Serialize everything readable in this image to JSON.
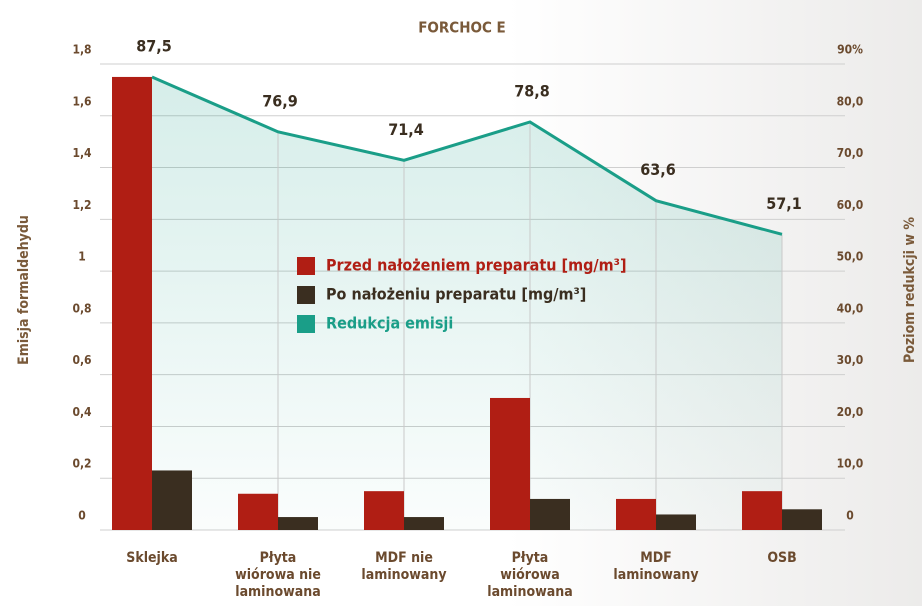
{
  "chart_data": {
    "type": "bar_line",
    "title": "FORCHOC E",
    "y_label": "Emisja formaldehydu",
    "y2_label": "Poziom redukcji w %",
    "categories": [
      "Sklejka",
      "Płyta\nwiórowa nie\nlaminowana",
      "MDF nie\nlaminowany",
      "Płyta\nwiórowa\nlaminowana",
      "MDF\nlaminowany",
      "OSB"
    ],
    "series": [
      {
        "name": "Przed nałożeniem preparatu [mg/m³]",
        "color": "#b01e14",
        "type": "bar",
        "values": [
          1.75,
          0.14,
          0.15,
          0.51,
          0.12,
          0.15
        ]
      },
      {
        "name": "Po nałożeniu preparatu [mg/m³]",
        "color": "#3a2e20",
        "type": "bar",
        "values": [
          0.23,
          0.05,
          0.05,
          0.12,
          0.06,
          0.08
        ]
      },
      {
        "name": "Redukcja emisji",
        "color": "#1a9e88",
        "type": "line",
        "axis": "y2",
        "values": [
          87.5,
          76.9,
          71.4,
          78.8,
          63.6,
          57.1
        ],
        "value_labels": [
          "87,5",
          "76,9",
          "71,4",
          "78,8",
          "63,6",
          "57,1"
        ]
      }
    ],
    "ylim": [
      0,
      1.8
    ],
    "yticks": [
      0,
      {
        "value": 0.2,
        "label": "0,2"
      },
      {
        "value": 0.4,
        "label": "0,4"
      },
      {
        "value": 0.6,
        "label": "0,6"
      },
      {
        "value": 0.8,
        "label": "0,8"
      },
      1,
      {
        "value": 1.2,
        "label": "1,2"
      },
      {
        "value": 1.4,
        "label": "1,4"
      },
      {
        "value": 1.6,
        "label": "1,6"
      },
      {
        "value": 1.8,
        "label": "1,8"
      }
    ],
    "y2lim": [
      0,
      90
    ],
    "y2ticks": [
      0,
      {
        "value": 10,
        "label": "10,0"
      },
      {
        "value": 20,
        "label": "20,0"
      },
      {
        "value": 30,
        "label": "30,0"
      },
      {
        "value": 40,
        "label": "40,0"
      },
      {
        "value": 50,
        "label": "50,0"
      },
      {
        "value": 60,
        "label": "60,0"
      },
      {
        "value": 70,
        "label": "70,0"
      },
      {
        "value": 80,
        "label": "80,0"
      },
      {
        "value": 90,
        "label": "90%"
      }
    ],
    "grid": true
  }
}
